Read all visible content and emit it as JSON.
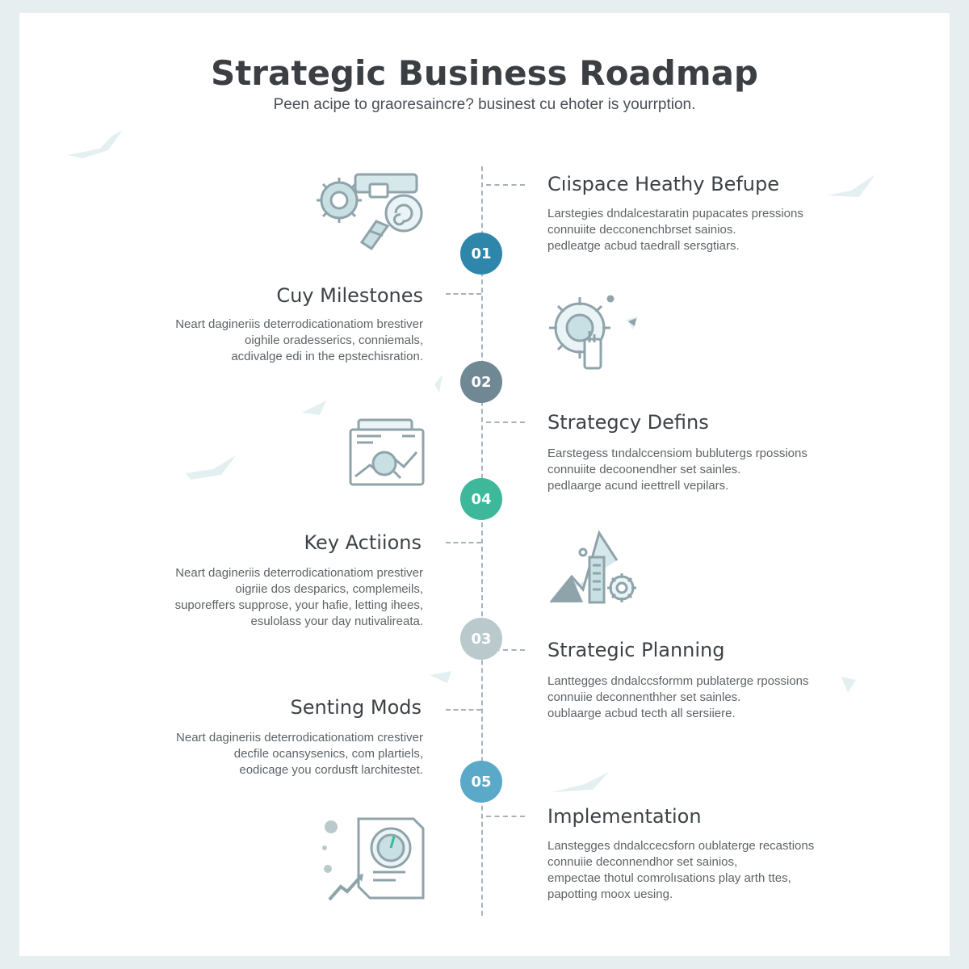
{
  "header": {
    "title": "Strategic Business Roadmap",
    "subtitle": "Peen acipe to graoresaincre? businest cu ehoter is yourrption."
  },
  "colors": {
    "node_01": "#2e86ab",
    "node_02": "#6f8893",
    "node_04": "#3db89a",
    "node_03": "#b9c9cc",
    "node_05": "#5aa9c9",
    "icon_stroke": "#8fa3aa",
    "icon_fill": "#c8e0e4"
  },
  "nodes": [
    {
      "label": "01"
    },
    {
      "label": "02"
    },
    {
      "label": "04"
    },
    {
      "label": "03"
    },
    {
      "label": "05"
    }
  ],
  "right_sections": [
    {
      "heading": "Cıispace Heathy Befupe",
      "lines": [
        "Larstegies dndalcestaratin pupacates pressions",
        "connuiite  decconenchbrset sainios.",
        "pedleatge acbud taedrall sersgtiars."
      ],
      "icon": "gear-magnifier-icon"
    },
    {
      "heading": "Strategcy Defins",
      "lines": [
        "Earstegess tındalccensiom bublutergs rpossions",
        "connuiite  decoonendher set sainles.",
        "pedlaarge acund ieettrell vepilars."
      ],
      "icon": "gear-hand-icon"
    },
    {
      "heading": "Strategic Planning",
      "lines": [
        "Lanttegges dndalccsformm publaterge rpossions",
        "connuiie  deconnenthher set sainles.",
        "oublaarge acbud tecth all sersiiere."
      ],
      "icon": "mountain-gear-icon"
    },
    {
      "heading": "Implementation",
      "lines": [
        "Lanstegges dndalccecsforn oublaterge recastions",
        "connuiie  deconnendhor set sainios,",
        "empectae thotul comrolısations play arth ttes,",
        "papotting moox uesing."
      ],
      "icon": "gauge-document-icon"
    }
  ],
  "left_sections": [
    {
      "heading": "Cuy Milestones",
      "lines": [
        "Neart dagineriis deterrodicationatiom brestiver",
        "oighile oradesserics, conniemals,",
        "acdivalge edi in the epstechisration."
      ],
      "icon": "chart-magnifier-icon"
    },
    {
      "heading": "Key Actiions",
      "lines": [
        "Neart dagineriis deterrodicationatiom prestiver",
        "oigriie dos desparics, complemeils,",
        "suporeffers supprose, your hafie, letting ihees,",
        "esulolass your day nutivalireata."
      ]
    },
    {
      "heading": "Senting Mods",
      "lines": [
        "Neart dagineriis deterrodicationatiom crestiver",
        "decfile ocansysenics, com plartiels,",
        "eodicage you cordusft larchitestet."
      ]
    }
  ]
}
